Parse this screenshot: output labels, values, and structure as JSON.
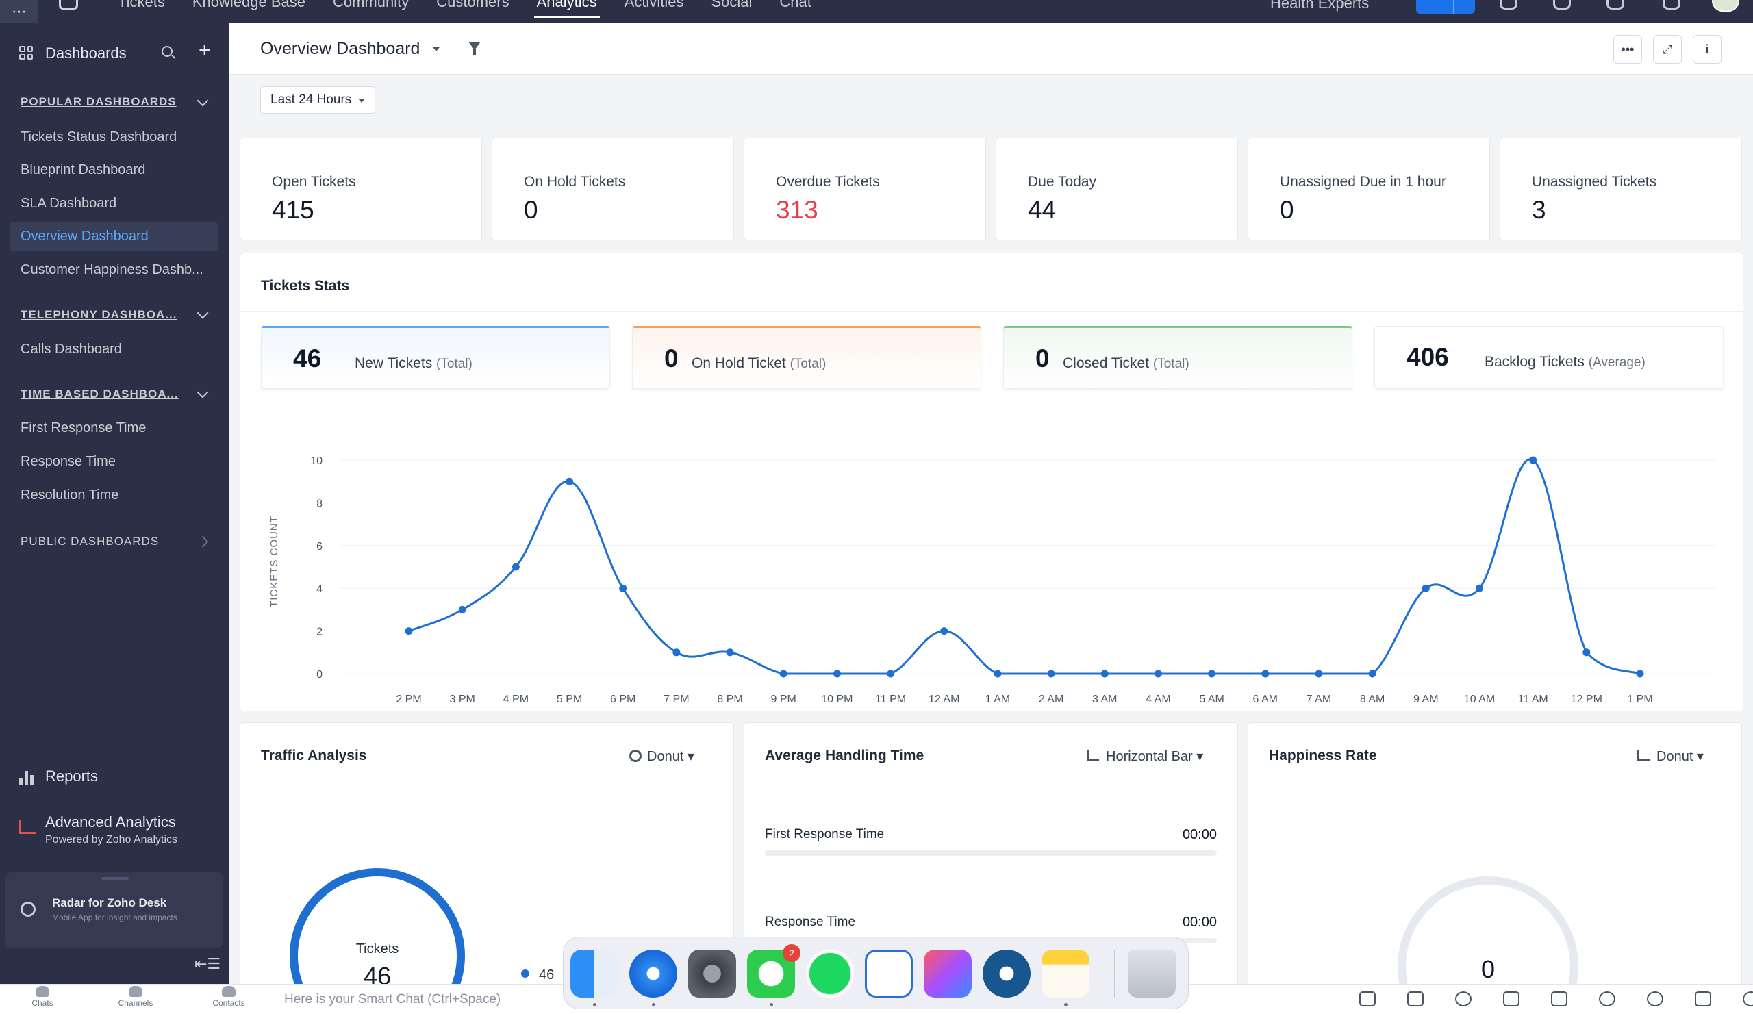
{
  "topnav": {
    "tabs": [
      "Tickets",
      "Knowledge Base",
      "Community",
      "Customers",
      "Analytics",
      "Activities",
      "Social",
      "Chat"
    ],
    "active_tab": "Analytics",
    "org_name": "Health Experts"
  },
  "sidebar": {
    "title": "Dashboards",
    "sections": {
      "popular": "POPULAR DASHBOARDS",
      "telephony": "TELEPHONY DASHBOA...",
      "time_based": "TIME BASED DASHBOA...",
      "public": "PUBLIC DASHBOARDS"
    },
    "popular_items": [
      "Tickets Status Dashboard",
      "Blueprint Dashboard",
      "SLA Dashboard",
      "Overview Dashboard",
      "Customer Happiness Dashb..."
    ],
    "active_item": "Overview Dashboard",
    "telephony_items": [
      "Calls Dashboard"
    ],
    "time_items": [
      "First Response Time",
      "Response Time",
      "Resolution Time"
    ],
    "reports_label": "Reports",
    "advanced_analytics": {
      "title": "Advanced Analytics",
      "subtitle": "Powered by Zoho Analytics"
    },
    "radar": {
      "title": "Radar for Zoho Desk",
      "subtitle": "Mobile App for insight and impacts"
    },
    "collapse_label": "⇤☰"
  },
  "header": {
    "title": "Overview Dashboard",
    "more_label": "•••",
    "expand_label": "⤢",
    "info_label": "i"
  },
  "time_range": "Last 24 Hours",
  "kpis": [
    {
      "label": "Open Tickets",
      "value": "415",
      "color": "#111827"
    },
    {
      "label": "On Hold Tickets",
      "value": "0",
      "color": "#111827"
    },
    {
      "label": "Overdue Tickets",
      "value": "313",
      "color": "#e0414b"
    },
    {
      "label": "Due Today",
      "value": "44",
      "color": "#111827"
    },
    {
      "label": "Unassigned Due in 1 hour",
      "value": "0",
      "color": "#111827"
    },
    {
      "label": "Unassigned Tickets",
      "value": "3",
      "color": "#111827"
    }
  ],
  "tickets_stats": {
    "title": "Tickets Stats",
    "cards": [
      {
        "value": "46",
        "label": "New Tickets",
        "suffix": "(Total)"
      },
      {
        "value": "0",
        "label": "On Hold Ticket",
        "suffix": "(Total)"
      },
      {
        "value": "0",
        "label": "Closed Ticket",
        "suffix": "(Total)"
      },
      {
        "value": "406",
        "label": "Backlog Tickets",
        "suffix": "(Average)"
      }
    ]
  },
  "chart_data": {
    "type": "line",
    "title": "",
    "xlabel": "",
    "ylabel": "TICKETS COUNT",
    "ylim": [
      0,
      10
    ],
    "yticks": [
      0,
      2,
      4,
      6,
      8,
      10
    ],
    "categories": [
      "2 PM",
      "3 PM",
      "4 PM",
      "5 PM",
      "6 PM",
      "7 PM",
      "8 PM",
      "9 PM",
      "10 PM",
      "11 PM",
      "12 AM",
      "1 AM",
      "2 AM",
      "3 AM",
      "4 AM",
      "5 AM",
      "6 AM",
      "7 AM",
      "8 AM",
      "9 AM",
      "10 AM",
      "11 AM",
      "12 PM",
      "1 PM"
    ],
    "series": [
      {
        "values": [
          2,
          3,
          5,
          9,
          4,
          1,
          1,
          0,
          0,
          0,
          2,
          0,
          0,
          0,
          0,
          0,
          0,
          0,
          0,
          4,
          4,
          10,
          1,
          0
        ]
      }
    ],
    "grid": true,
    "legend": "none",
    "line_color": "#1f6fd1"
  },
  "panels": {
    "traffic": {
      "title": "Traffic Analysis",
      "type_label": "Donut",
      "center_label": "Tickets",
      "center_value": "46",
      "legend_value": "46"
    },
    "aht": {
      "title": "Average Handling Time",
      "type_label": "Horizontal Bar",
      "rows": [
        {
          "label": "First Response Time",
          "value": "00:00"
        },
        {
          "label": "Response Time",
          "value": "00:00"
        }
      ]
    },
    "happiness": {
      "title": "Happiness Rate",
      "type_label": "Donut",
      "center_value": "0"
    }
  },
  "bottombar": {
    "tabs": [
      "Chats",
      "Channels",
      "Contacts"
    ],
    "smart_chat_placeholder": "Here is your Smart Chat (Ctrl+Space)"
  },
  "dock": {
    "apps": [
      "finder-icon",
      "safari-icon",
      "system-settings-icon",
      "whatsapp-icon",
      "spotify-icon",
      "messages-icon",
      "clickup-icon",
      "perplexity-icon",
      "notes-icon",
      "trash-icon"
    ],
    "whatsapp_badge": "2"
  }
}
